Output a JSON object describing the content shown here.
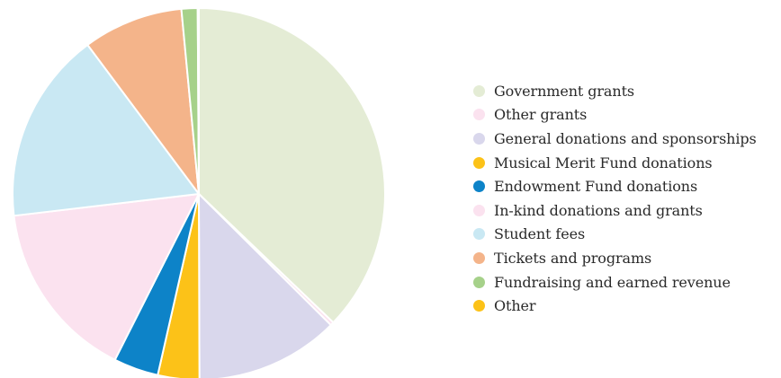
{
  "chart_data": {
    "type": "pie",
    "title": "",
    "legend_position": "right",
    "slices": [
      {
        "label": "Government grants",
        "value": 37.2,
        "color": "#e4ecd5"
      },
      {
        "label": "Other grants",
        "value": 0.3,
        "color": "#fbe2ef"
      },
      {
        "label": "General donations and sponsorships",
        "value": 12.5,
        "color": "#d9d7ec"
      },
      {
        "label": "Musical Merit Fund donations",
        "value": 3.6,
        "color": "#fcc218"
      },
      {
        "label": "Endowment Fund donations",
        "value": 3.9,
        "color": "#0d83c8"
      },
      {
        "label": "In-kind donations and grants",
        "value": 15.7,
        "color": "#fbe2ef"
      },
      {
        "label": "Student fees",
        "value": 16.7,
        "color": "#c9e8f3"
      },
      {
        "label": "Tickets and programs",
        "value": 8.7,
        "color": "#f4b48a"
      },
      {
        "label": "Fundraising and earned revenue",
        "value": 1.4,
        "color": "#a6d18a"
      },
      {
        "label": "Other",
        "value": 0.1,
        "color": "#fcc218"
      }
    ]
  }
}
